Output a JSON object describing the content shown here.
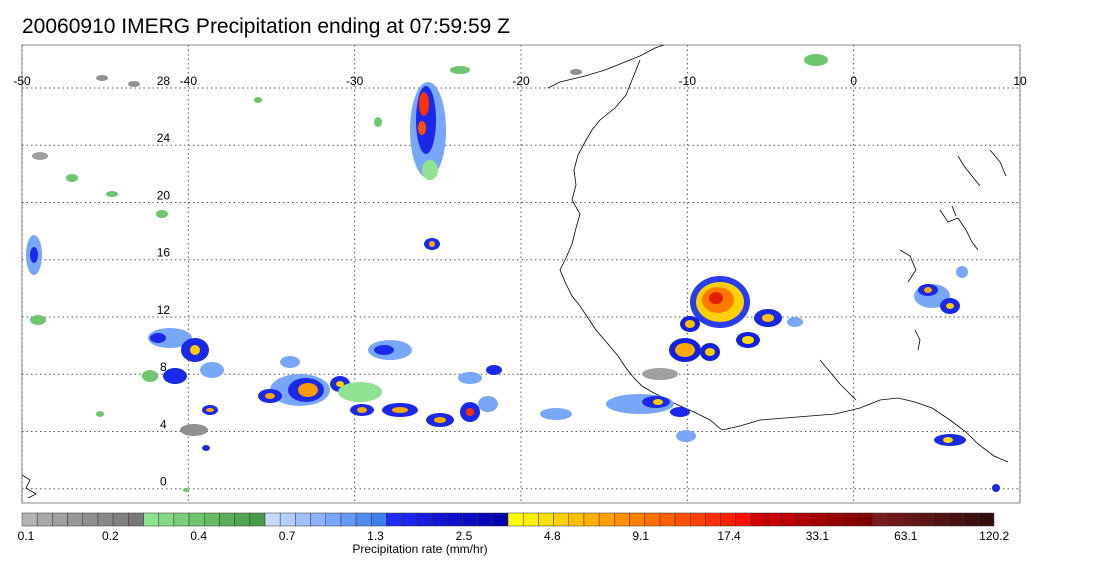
{
  "title": "20060910 IMERG Precipitation ending at 07:59:59 Z",
  "map": {
    "lon_range": [
      -50,
      10
    ],
    "lat_range": [
      -1,
      31
    ],
    "lon_ticks": [
      "-50",
      "-40",
      "-30",
      "-20",
      "-10",
      "0",
      "10"
    ],
    "lat_ticks": [
      "0",
      "4",
      "8",
      "12",
      "16",
      "20",
      "24",
      "28"
    ],
    "gridlines": "dotted"
  },
  "legend": {
    "label": "Precipitation rate (mm/hr)",
    "ticks": [
      "0.1",
      "0.2",
      "0.4",
      "0.7",
      "1.3",
      "2.5",
      "4.8",
      "9.1",
      "17.4",
      "33.1",
      "63.1",
      "120.2"
    ],
    "colors": [
      "#b4b4b4",
      "#a8a8a8",
      "#a0a0a0",
      "#989898",
      "#909090",
      "#888888",
      "#808080",
      "#787878",
      "#8fe28f",
      "#84d984",
      "#79cf79",
      "#6ec56e",
      "#64bb64",
      "#5ab05a",
      "#50a650",
      "#489c48",
      "#c8d8f8",
      "#b4cdfa",
      "#a0c0fa",
      "#8cb3fa",
      "#78a6f8",
      "#6499f4",
      "#508cf0",
      "#3c80ec",
      "#1e2cf5",
      "#1a24ea",
      "#161ce0",
      "#1214d6",
      "#0e0ecc",
      "#0a0ac2",
      "#0606b8",
      "#0000ae",
      "#ffff00",
      "#ffef00",
      "#ffdf00",
      "#ffcf00",
      "#ffbf00",
      "#ffaf00",
      "#ff9f00",
      "#ff8f00",
      "#ff7f00",
      "#ff6f00",
      "#ff5f00",
      "#ff4f00",
      "#ff3f00",
      "#ff2f00",
      "#ff1f00",
      "#ff0f00",
      "#d00000",
      "#c80000",
      "#bc0000",
      "#b00000",
      "#a40000",
      "#980000",
      "#8c0000",
      "#800000",
      "#7a1a1a",
      "#701818",
      "#661616",
      "#5c1414",
      "#521212",
      "#481010",
      "#3e0e0e",
      "#340c0c"
    ]
  },
  "colors": {
    "grid": "#555555",
    "coast": "#000000",
    "frame": "#888888"
  }
}
